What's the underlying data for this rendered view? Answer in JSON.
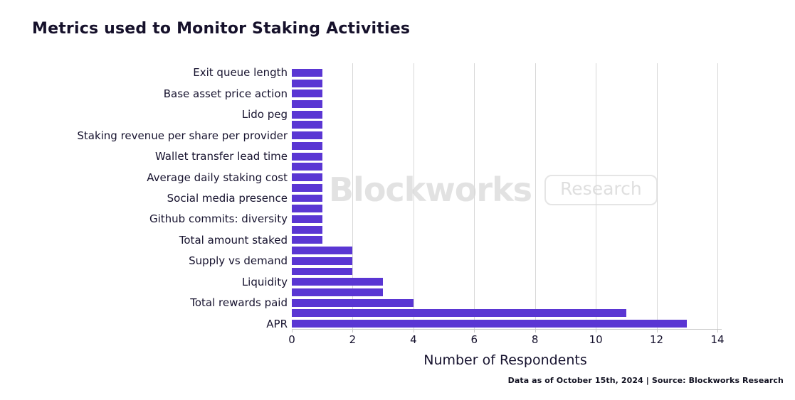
{
  "header": {
    "title": "Metrics used to Monitor Staking Activities"
  },
  "watermark": {
    "brand": "Blockworks",
    "badge": "Research"
  },
  "footer": {
    "text": "Data as of October 15th, 2024 | Source: Blockworks Research"
  },
  "colors": {
    "bar": "#5a36d3",
    "grid": "#d8d8d8",
    "axis": "#c8c8c8",
    "text": "#16122e",
    "watermark": "#e2e2e2"
  },
  "chart_data": {
    "type": "bar",
    "orientation": "horizontal",
    "title": "Metrics used to Monitor Staking Activities",
    "xlabel": "Number of Respondents",
    "ylabel": "",
    "xlim": [
      0,
      14
    ],
    "xticks": [
      0,
      2,
      4,
      6,
      8,
      10,
      12,
      14
    ],
    "grid": true,
    "legend": "none",
    "note": "25 bars total; only alternate bars carry category labels (label shown for even rows, unlabeled respondent metrics between)",
    "rows": [
      {
        "label": "Exit queue length",
        "value": 1
      },
      {
        "label": "",
        "value": 1
      },
      {
        "label": "Base asset price action",
        "value": 1
      },
      {
        "label": "",
        "value": 1
      },
      {
        "label": "Lido peg",
        "value": 1
      },
      {
        "label": "",
        "value": 1
      },
      {
        "label": "Staking revenue per share per provider",
        "value": 1
      },
      {
        "label": "",
        "value": 1
      },
      {
        "label": "Wallet transfer lead time",
        "value": 1
      },
      {
        "label": "",
        "value": 1
      },
      {
        "label": "Average daily staking cost",
        "value": 1
      },
      {
        "label": "",
        "value": 1
      },
      {
        "label": "Social media presence",
        "value": 1
      },
      {
        "label": "",
        "value": 1
      },
      {
        "label": "Github commits: diversity",
        "value": 1
      },
      {
        "label": "",
        "value": 1
      },
      {
        "label": "Total amount staked",
        "value": 1
      },
      {
        "label": "",
        "value": 2
      },
      {
        "label": "Supply vs demand",
        "value": 2
      },
      {
        "label": "",
        "value": 2
      },
      {
        "label": "Liquidity",
        "value": 3
      },
      {
        "label": "",
        "value": 3
      },
      {
        "label": "Total rewards paid",
        "value": 4
      },
      {
        "label": "",
        "value": 11
      },
      {
        "label": "APR",
        "value": 13
      }
    ]
  }
}
